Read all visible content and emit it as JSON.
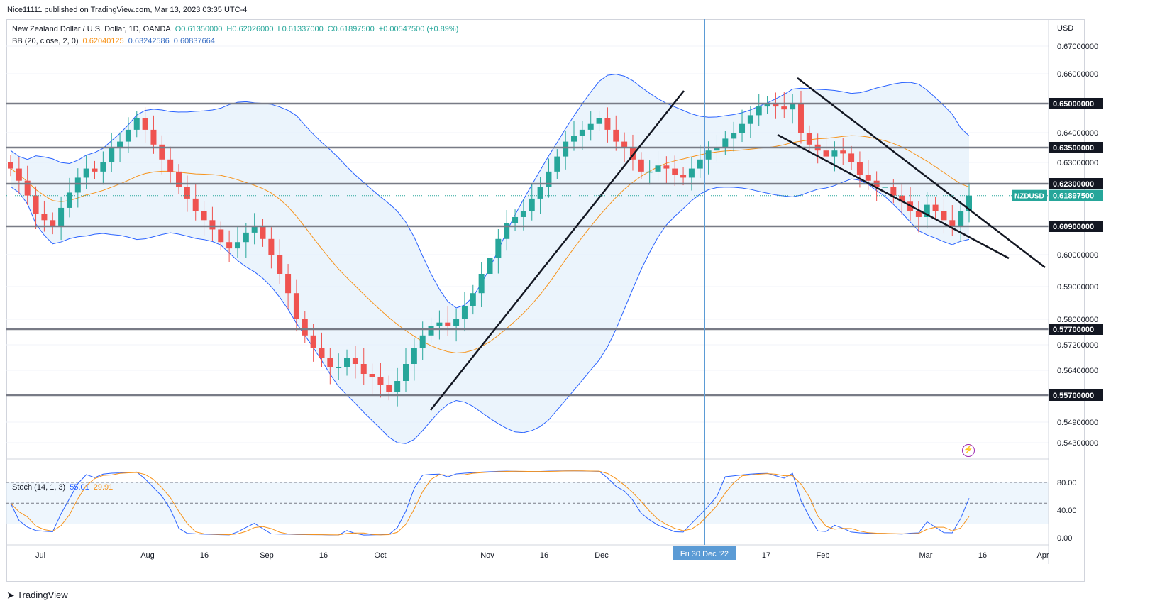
{
  "header": {
    "publisher": "Nice11111 published on TradingView.com, Mar 13, 2023 03:35 UTC-4"
  },
  "legend": {
    "symbol": "New Zealand Dollar / U.S. Dollar, 1D, OANDA",
    "open": "O0.61350000",
    "high": "H0.62026000",
    "low": "L0.61337000",
    "close": "C0.61897500",
    "change": "+0.00547500 (+0.89%)",
    "bb_label": "BB (20, close, 2, 0)",
    "bb_basis": "0.62040125",
    "bb_upper": "0.63242586",
    "bb_lower": "0.60837664",
    "stoch_label": "Stoch (14, 1, 3)",
    "stoch_k": "55.01",
    "stoch_d": "29.91"
  },
  "colors": {
    "up": "#26a69a",
    "down": "#ef5350",
    "bb_basis": "#f7931a",
    "bb_band": "#2962ff",
    "bb_fill": "#e3f0fb",
    "level": "#787b86",
    "trendline": "#131722",
    "crosshair": "#5b9bd5",
    "stoch_k": "#2962ff",
    "stoch_d": "#f7931a"
  },
  "footer": {
    "brand": "TradingView"
  },
  "chart_data": {
    "type": "candlestick",
    "currency": "USD",
    "symbol_tag": "NZDUSD",
    "last_price": "0.61897500",
    "price_axis_ticks": [
      "0.67000000",
      "0.66000000",
      "0.64000000",
      "0.63000000",
      "0.60000000",
      "0.59000000",
      "0.58000000",
      "0.57200000",
      "0.56400000",
      "0.54900000",
      "0.54300000"
    ],
    "horizontal_levels": [
      "0.65000000",
      "0.63500000",
      "0.62300000",
      "0.60900000",
      "0.57700000",
      "0.55700000"
    ],
    "time_axis_labels": [
      "Jul",
      "Aug",
      "16",
      "Sep",
      "16",
      "Oct",
      "Nov",
      "16",
      "Dec",
      "17",
      "Feb",
      "Mar",
      "16",
      "Apr"
    ],
    "crosshair_label": "Fri 30 Dec '22",
    "stoch_axis_ticks": [
      "80.00",
      "40.00",
      "0.00"
    ],
    "stoch_bands": [
      80,
      50,
      20
    ],
    "close_series": [
      0.628,
      0.624,
      0.619,
      0.613,
      0.611,
      0.609,
      0.615,
      0.62,
      0.625,
      0.628,
      0.627,
      0.63,
      0.635,
      0.637,
      0.641,
      0.645,
      0.641,
      0.636,
      0.631,
      0.627,
      0.622,
      0.618,
      0.614,
      0.611,
      0.608,
      0.604,
      0.602,
      0.604,
      0.607,
      0.609,
      0.605,
      0.6,
      0.594,
      0.588,
      0.58,
      0.575,
      0.571,
      0.568,
      0.565,
      0.565,
      0.568,
      0.566,
      0.563,
      0.562,
      0.56,
      0.558,
      0.561,
      0.566,
      0.571,
      0.575,
      0.578,
      0.579,
      0.578,
      0.58,
      0.584,
      0.588,
      0.594,
      0.599,
      0.605,
      0.61,
      0.612,
      0.614,
      0.618,
      0.622,
      0.627,
      0.632,
      0.637,
      0.639,
      0.641,
      0.643,
      0.645,
      0.641,
      0.637,
      0.635,
      0.631,
      0.627,
      0.627,
      0.629,
      0.628,
      0.626,
      0.625,
      0.628,
      0.631,
      0.634,
      0.635,
      0.638,
      0.64,
      0.643,
      0.646,
      0.649,
      0.65,
      0.649,
      0.648,
      0.65,
      0.64,
      0.636,
      0.634,
      0.632,
      0.634,
      0.633,
      0.63,
      0.626,
      0.624,
      0.622,
      0.622,
      0.619,
      0.617,
      0.614,
      0.612,
      0.616,
      0.614,
      0.611,
      0.609,
      0.614,
      0.619
    ]
  }
}
